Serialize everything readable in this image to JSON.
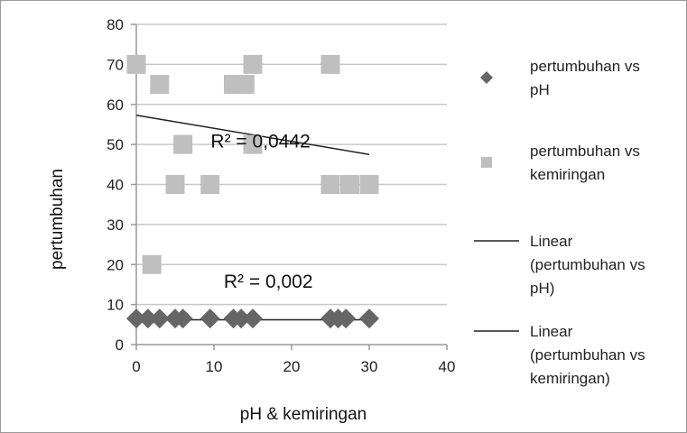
{
  "chart_data": {
    "type": "scatter",
    "xlabel": "pH & kemiringan",
    "ylabel": "pertumbuhan",
    "xlim": [
      0,
      40
    ],
    "ylim": [
      0,
      80
    ],
    "x_ticks": [
      0,
      10,
      20,
      30,
      40
    ],
    "y_ticks": [
      0,
      10,
      20,
      30,
      40,
      50,
      60,
      70,
      80
    ],
    "grid": "horizontal major gridlines",
    "legend_position": "right",
    "colors": {
      "series_ph": "#666666",
      "series_kemiringan": "#bfbfbf",
      "trendline": "#222222",
      "grid": "#c8c8c8",
      "axis": "#999999"
    },
    "series": [
      {
        "name": "pertumbuhan vs pH",
        "marker": "diamond",
        "x": [
          0,
          1.5,
          3,
          5,
          6,
          9.5,
          12.5,
          13.5,
          15,
          25,
          26,
          27,
          30
        ],
        "y": [
          6.5,
          6.5,
          6.5,
          6.5,
          6.5,
          6.5,
          6.5,
          6.5,
          6.5,
          6.5,
          6.5,
          6.5,
          6.5
        ]
      },
      {
        "name": "pertumbuhan vs kemiringan",
        "marker": "square",
        "x": [
          0,
          2,
          3,
          5,
          6,
          9.5,
          12.5,
          14,
          15,
          15,
          25,
          25,
          27.5,
          30
        ],
        "y": [
          70,
          20,
          65,
          40,
          50,
          40,
          65,
          65,
          70,
          50,
          70,
          40,
          40,
          40
        ]
      }
    ],
    "trendlines": [
      {
        "name": "Linear (pertumbuhan vs pH)",
        "x": [
          0,
          30
        ],
        "y": [
          6.2,
          6.2
        ],
        "r2_label": "R² = 0,002",
        "r2_at": [
          17,
          12
        ]
      },
      {
        "name": "Linear (pertumbuhan vs kemiringan)",
        "x": [
          0,
          30
        ],
        "y": [
          57.3,
          47.5
        ],
        "r2_label": "R² = 0,0442",
        "r2_at": [
          16,
          47
        ]
      }
    ],
    "legend": [
      {
        "marker": "diamond",
        "lines": [
          "pertumbuhan vs",
          "pH"
        ]
      },
      {
        "marker": "square",
        "lines": [
          "pertumbuhan vs",
          "kemiringan"
        ]
      },
      {
        "marker": "line",
        "lines": [
          "Linear",
          "(pertumbuhan vs",
          "pH)"
        ]
      },
      {
        "marker": "line",
        "lines": [
          "Linear",
          "(pertumbuhan vs",
          "kemiringan)"
        ]
      }
    ]
  }
}
